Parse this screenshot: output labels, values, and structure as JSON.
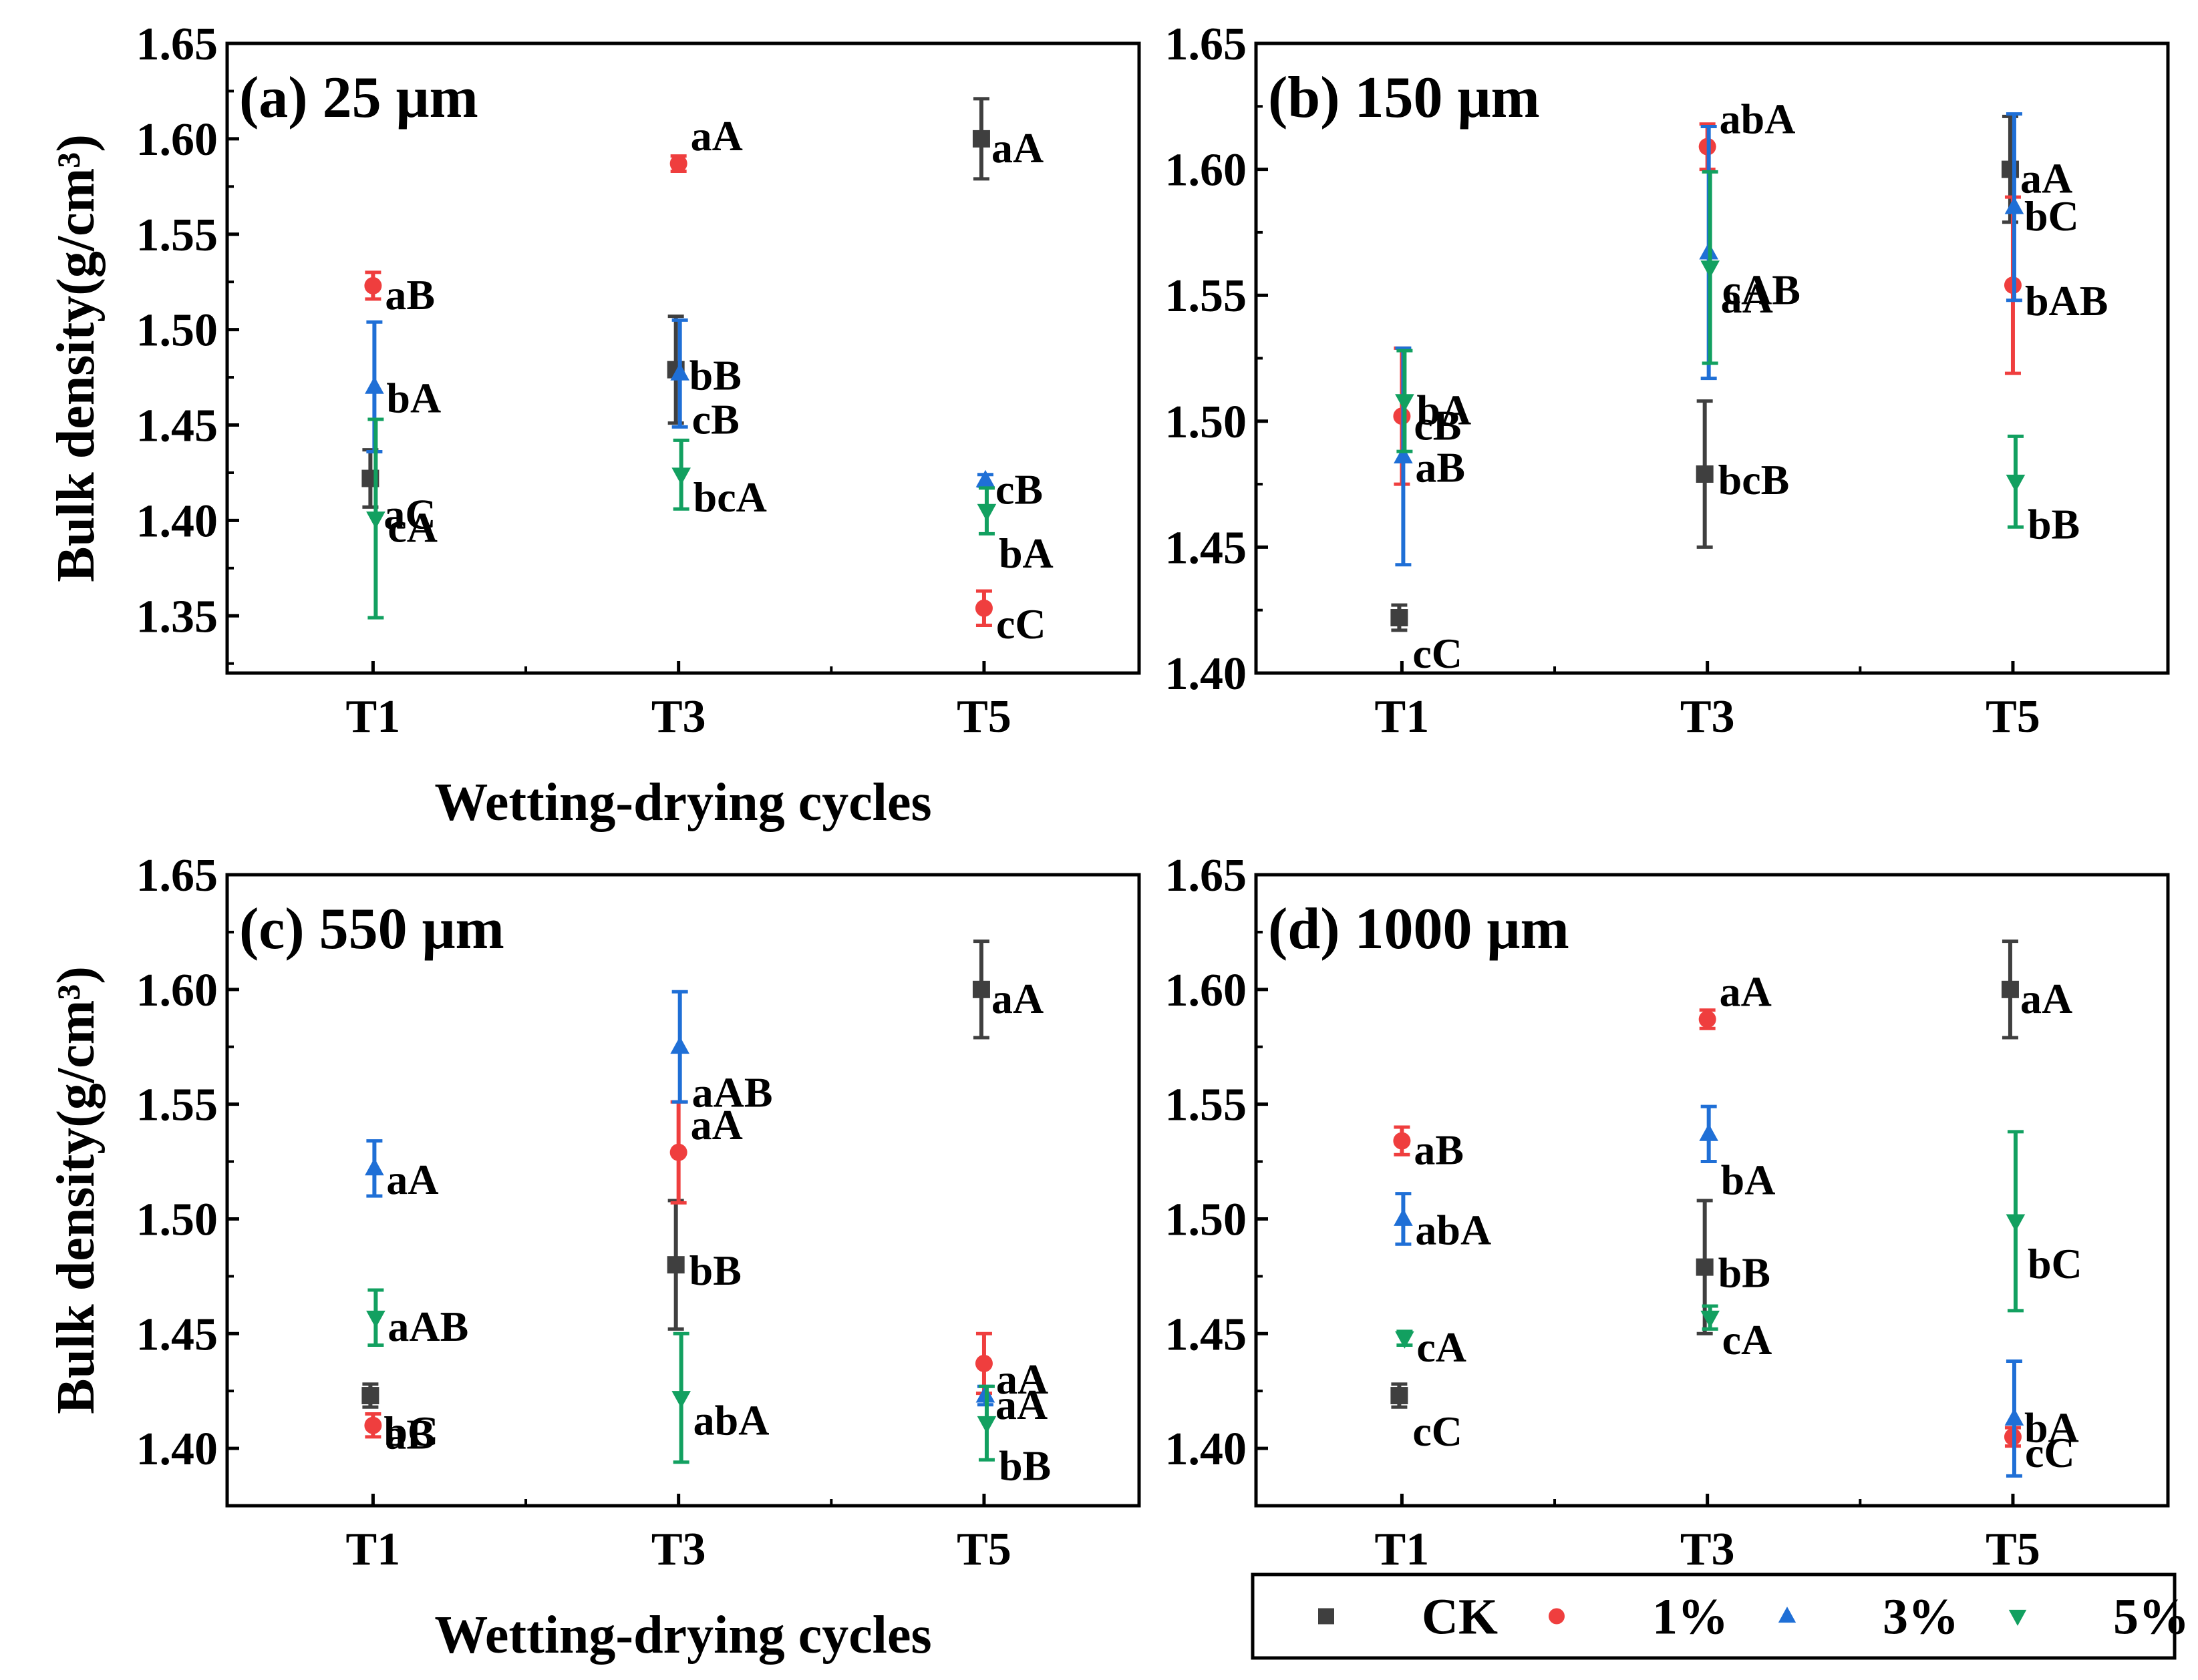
{
  "chart_data": [
    {
      "type": "scatter",
      "title": "(a) 25 μm",
      "xlabel": "Wetting-drying cycles",
      "ylabel": "Bulk density(g/cm³)",
      "ylim": [
        1.32,
        1.65
      ],
      "yticks": [
        "1.35",
        "1.40",
        "1.45",
        "1.50",
        "1.55",
        "1.60",
        "1.65"
      ],
      "categories": [
        "T1",
        "T3",
        "T5"
      ],
      "series": [
        {
          "name": "CK",
          "values": [
            1.422,
            1.479,
            1.6
          ],
          "errors": [
            0.015,
            0.028,
            0.021
          ],
          "labels": [
            "aC",
            "bB",
            "aA"
          ]
        },
        {
          "name": "1%",
          "values": [
            1.523,
            1.587,
            1.354
          ],
          "errors": [
            0.007,
            0.004,
            0.009
          ],
          "labels": [
            "aB",
            "aA",
            "cC"
          ]
        },
        {
          "name": "3%",
          "values": [
            1.47,
            1.477,
            1.421
          ],
          "errors": [
            0.034,
            0.028,
            0.003
          ],
          "labels": [
            "bA",
            "cB",
            "cB"
          ]
        },
        {
          "name": "5%",
          "values": [
            1.401,
            1.424,
            1.405
          ],
          "errors": [
            0.052,
            0.018,
            0.012
          ],
          "labels": [
            "cA",
            "bcA",
            "bA"
          ]
        }
      ]
    },
    {
      "type": "scatter",
      "title": "(b) 150 μm",
      "xlabel": "",
      "ylabel": "",
      "ylim": [
        1.4,
        1.65
      ],
      "yticks": [
        "1.40",
        "1.45",
        "1.50",
        "1.55",
        "1.60",
        "1.65"
      ],
      "categories": [
        "T1",
        "T3",
        "T5"
      ],
      "series": [
        {
          "name": "CK",
          "values": [
            1.422,
            1.479,
            1.6
          ],
          "errors": [
            0.005,
            0.029,
            0.021
          ],
          "labels": [
            "cC",
            "bcB",
            "aA"
          ]
        },
        {
          "name": "1%",
          "values": [
            1.502,
            1.609,
            1.554
          ],
          "errors": [
            0.027,
            0.009,
            0.035
          ],
          "labels": [
            "cB",
            "abA",
            "bAB"
          ]
        },
        {
          "name": "3%",
          "values": [
            1.486,
            1.567,
            1.585
          ],
          "errors": [
            0.043,
            0.05,
            0.037
          ],
          "labels": [
            "aB",
            "aA",
            "bC"
          ]
        },
        {
          "name": "5%",
          "values": [
            1.508,
            1.561,
            1.476
          ],
          "errors": [
            0.02,
            0.038,
            0.018
          ],
          "labels": [
            "bA",
            "cAB",
            "bB"
          ]
        }
      ]
    },
    {
      "type": "scatter",
      "title": "(c) 550 μm",
      "xlabel": "Wetting-drying cycles",
      "ylabel": "Bulk density(g/cm³)",
      "ylim": [
        1.375,
        1.65
      ],
      "yticks": [
        "1.40",
        "1.45",
        "1.50",
        "1.55",
        "1.60",
        "1.65"
      ],
      "categories": [
        "T1",
        "T3",
        "T5"
      ],
      "series": [
        {
          "name": "CK",
          "values": [
            1.423,
            1.48,
            1.6
          ],
          "errors": [
            0.005,
            0.028,
            0.021
          ],
          "labels": [
            "bC",
            "bB",
            "aA"
          ]
        },
        {
          "name": "1%",
          "values": [
            1.41,
            1.529,
            1.437
          ],
          "errors": [
            0.005,
            0.022,
            0.013
          ],
          "labels": [
            "aB",
            "aA",
            "aA"
          ]
        },
        {
          "name": "3%",
          "values": [
            1.522,
            1.575,
            1.423
          ],
          "errors": [
            0.012,
            0.024,
            0.004
          ],
          "labels": [
            "aA",
            "aAB",
            "aA"
          ]
        },
        {
          "name": "5%",
          "values": [
            1.457,
            1.422,
            1.411
          ],
          "errors": [
            0.012,
            0.028,
            0.016
          ],
          "labels": [
            "aAB",
            "abA",
            "bB"
          ]
        }
      ]
    },
    {
      "type": "scatter",
      "title": "(d) 1000 μm",
      "xlabel": "",
      "ylabel": "",
      "ylim": [
        1.375,
        1.65
      ],
      "yticks": [
        "1.40",
        "1.45",
        "1.50",
        "1.55",
        "1.60",
        "1.65"
      ],
      "categories": [
        "T1",
        "T3",
        "T5"
      ],
      "series": [
        {
          "name": "CK",
          "values": [
            1.423,
            1.479,
            1.6
          ],
          "errors": [
            0.005,
            0.029,
            0.021
          ],
          "labels": [
            "cC",
            "bB",
            "aA"
          ]
        },
        {
          "name": "1%",
          "values": [
            1.534,
            1.587,
            1.405
          ],
          "errors": [
            0.006,
            0.004,
            0.004
          ],
          "labels": [
            "aB",
            "aA",
            "cC"
          ]
        },
        {
          "name": "3%",
          "values": [
            1.5,
            1.537,
            1.413
          ],
          "errors": [
            0.011,
            0.012,
            0.025
          ],
          "labels": [
            "abA",
            "bA",
            "bA"
          ]
        },
        {
          "name": "5%",
          "values": [
            1.448,
            1.457,
            1.499
          ],
          "errors": [
            0.003,
            0.005,
            0.039
          ],
          "labels": [
            "cA",
            "cA",
            "bC"
          ]
        }
      ]
    }
  ],
  "legend": {
    "placement": "bottom-right",
    "entries": [
      {
        "name": "CK",
        "color": "#3f3f3f",
        "marker": "square"
      },
      {
        "name": "1%",
        "color": "#ef3e3e",
        "marker": "circle"
      },
      {
        "name": "3%",
        "color": "#1f6fd6",
        "marker": "triangle-up"
      },
      {
        "name": "5%",
        "color": "#12a060",
        "marker": "triangle-down"
      }
    ]
  }
}
